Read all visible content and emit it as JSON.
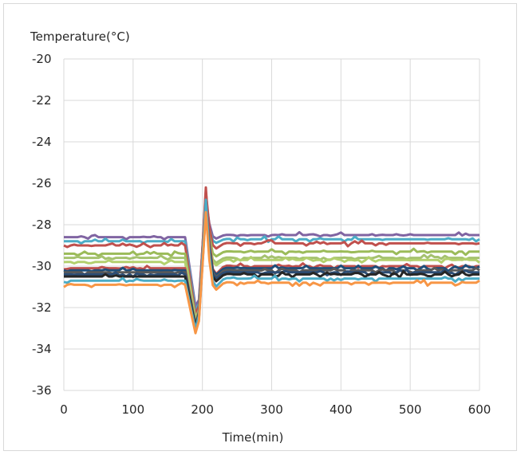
{
  "chart_data": {
    "type": "line",
    "title": "",
    "ylabel": "Temperature(°C)",
    "xlabel": "Time(min)",
    "xlim": [
      0,
      600
    ],
    "ylim": [
      -36,
      -20
    ],
    "x_ticks": [
      0,
      100,
      200,
      300,
      400,
      500,
      600
    ],
    "y_ticks": [
      -20,
      -22,
      -24,
      -26,
      -28,
      -30,
      -32,
      -34,
      -36
    ],
    "x_tick_labels": [
      "0",
      "100",
      "200",
      "300",
      "400",
      "500",
      "600"
    ],
    "y_tick_labels": [
      "-20",
      "-22",
      "-24",
      "-26",
      "-28",
      "-30",
      "-32",
      "-34",
      "-36"
    ],
    "grid": true,
    "legend": "none",
    "disturbance": {
      "start": 175,
      "min_time": 193,
      "peak_time": 205,
      "settle_time": 240
    },
    "series": [
      {
        "base": -28.6,
        "after": -28.5,
        "min": -32.6,
        "peak": -26.8,
        "color": "#8064a2"
      },
      {
        "base": -28.8,
        "after": -28.7,
        "min": -32.8,
        "peak": -26.9,
        "color": "#4bacc6"
      },
      {
        "base": -29.0,
        "after": -28.9,
        "min": -33.0,
        "peak": -26.4,
        "color": "#c0504d"
      },
      {
        "base": -29.4,
        "after": -29.3,
        "min": -33.2,
        "peak": -27.0,
        "color": "#9bbb59"
      },
      {
        "base": -29.6,
        "after": -29.6,
        "min": -33.1,
        "peak": -27.2,
        "color": "#a5c26f"
      },
      {
        "base": -29.8,
        "after": -29.7,
        "min": -33.3,
        "peak": -27.1,
        "color": "#b3d06e"
      },
      {
        "base": -30.1,
        "after": -30.0,
        "min": -33.4,
        "peak": -26.2,
        "color": "#c0504d"
      },
      {
        "base": -30.2,
        "after": -30.1,
        "min": -33.5,
        "peak": -26.9,
        "color": "#1f4e79"
      },
      {
        "base": -30.3,
        "after": -30.2,
        "min": -33.3,
        "peak": -27.0,
        "color": "#595959"
      },
      {
        "base": -30.4,
        "after": -30.3,
        "min": -33.6,
        "peak": -27.3,
        "color": "#2c4d75"
      },
      {
        "base": -30.5,
        "after": -30.4,
        "min": -33.4,
        "peak": -27.1,
        "color": "#262626"
      },
      {
        "base": -30.7,
        "after": -30.6,
        "min": -33.5,
        "peak": -26.8,
        "color": "#4bacc6"
      },
      {
        "base": -30.9,
        "after": -30.8,
        "min": -33.7,
        "peak": -27.4,
        "color": "#f79646"
      }
    ]
  }
}
